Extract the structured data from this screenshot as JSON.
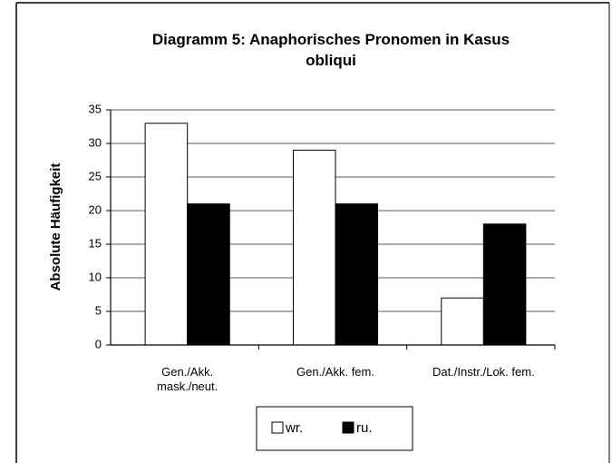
{
  "chart_data": {
    "type": "bar",
    "title": "Diagramm 5: Anaphorisches Pronomen in Kasus obliqui",
    "y_label": "Absolute Häufigkeit",
    "categories": [
      "Gen./Akk. mask./neut.",
      "Gen./Akk. fem.",
      "Dat./Instr./Lok. fem."
    ],
    "series": [
      {
        "name": "wr.",
        "color": "#ffffff",
        "values": [
          33,
          29,
          7
        ]
      },
      {
        "name": "ru.",
        "color": "#000000",
        "values": [
          21,
          21,
          18
        ]
      }
    ],
    "ylim": [
      0,
      35
    ],
    "yticks": [
      0,
      5,
      10,
      15,
      20,
      25,
      30,
      35
    ],
    "grid": true,
    "legend": "bottom"
  }
}
